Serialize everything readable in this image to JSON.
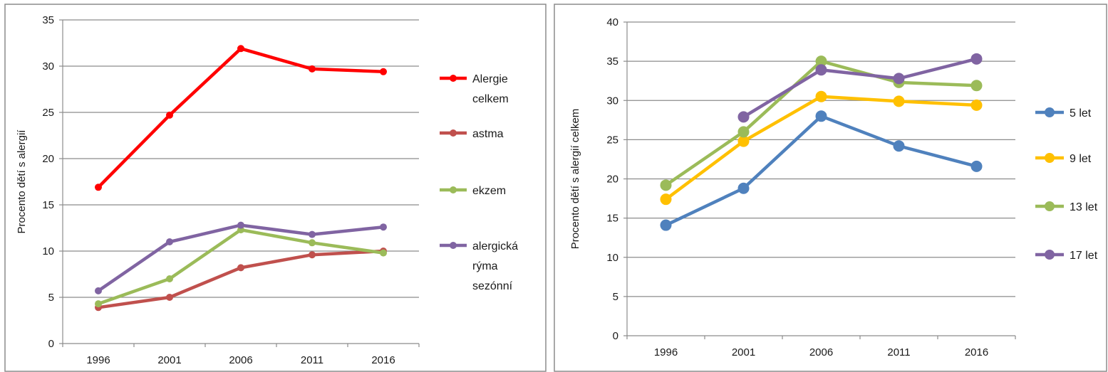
{
  "chart_data": [
    {
      "type": "line",
      "title": "",
      "xlabel": "",
      "ylabel": "Procento dětí s alergií",
      "categories": [
        "1996",
        "2001",
        "2006",
        "2011",
        "2016"
      ],
      "ylim": [
        0,
        35
      ],
      "yticks": [
        "0",
        "5",
        "10",
        "15",
        "20",
        "25",
        "30",
        "35"
      ],
      "grid": true,
      "legend_position": "right",
      "series": [
        {
          "name": "Alergie celkem",
          "legend_lines": [
            "Alergie",
            "celkem"
          ],
          "color": "#ff0000",
          "values": [
            16.9,
            24.7,
            31.9,
            29.7,
            29.4
          ]
        },
        {
          "name": "astma",
          "legend_lines": [
            "astma"
          ],
          "color": "#c0504d",
          "values": [
            3.9,
            5.0,
            8.2,
            9.6,
            10.0
          ]
        },
        {
          "name": "ekzem",
          "legend_lines": [
            "ekzem"
          ],
          "color": "#9bbb59",
          "values": [
            4.3,
            7.0,
            12.3,
            10.9,
            9.8
          ]
        },
        {
          "name": "alergická rýma sezónní",
          "legend_lines": [
            "alergická",
            "rýma",
            "sezónní"
          ],
          "color": "#8064a2",
          "values": [
            5.7,
            11.0,
            12.8,
            11.8,
            12.6
          ]
        }
      ]
    },
    {
      "type": "line",
      "title": "",
      "xlabel": "",
      "ylabel": "Procento dětí s alergií celkem",
      "categories": [
        "1996",
        "2001",
        "2006",
        "2011",
        "2016"
      ],
      "ylim": [
        0,
        40
      ],
      "yticks": [
        "0",
        "5",
        "10",
        "15",
        "20",
        "25",
        "30",
        "35",
        "40"
      ],
      "grid": true,
      "legend_position": "right",
      "series": [
        {
          "name": "5 let",
          "legend_lines": [
            "5 let"
          ],
          "color": "#4f81bd",
          "values": [
            14.1,
            18.8,
            28.0,
            24.2,
            21.6
          ]
        },
        {
          "name": "9 let",
          "legend_lines": [
            "9 let"
          ],
          "color": "#ffc000",
          "values": [
            17.4,
            24.8,
            30.5,
            29.9,
            29.4
          ]
        },
        {
          "name": "13 let",
          "legend_lines": [
            "13 let"
          ],
          "color": "#9bbb59",
          "values": [
            19.2,
            26.0,
            35.0,
            32.3,
            31.9
          ]
        },
        {
          "name": "17 let",
          "legend_lines": [
            "17 let"
          ],
          "color": "#8064a2",
          "values": [
            null,
            27.9,
            33.9,
            32.8,
            35.3
          ]
        }
      ]
    }
  ]
}
